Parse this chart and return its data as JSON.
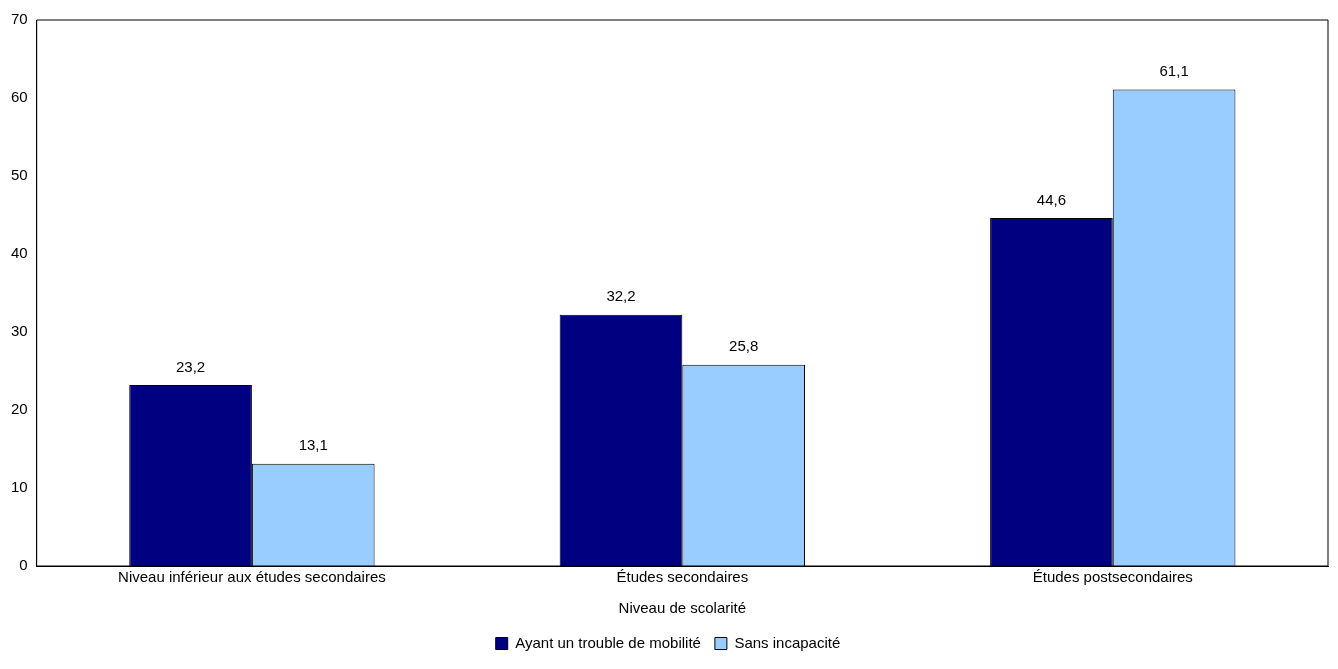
{
  "chart_data": {
    "type": "bar",
    "xlabel": "Niveau de scolarité",
    "categories": [
      "Niveau inférieur aux études secondaires",
      "Études secondaires",
      "Études postsecondaires"
    ],
    "series": [
      {
        "name": "Ayant un trouble de mobilité",
        "color": "#000080",
        "values": [
          23.2,
          32.2,
          44.6
        ],
        "value_labels": [
          "23,2",
          "32,2",
          "44,6"
        ]
      },
      {
        "name": "Sans incapacité",
        "color": "#99ccff",
        "values": [
          13.1,
          25.8,
          61.1
        ],
        "value_labels": [
          "13,1",
          "25,8",
          "61,1"
        ]
      }
    ],
    "ylim": [
      0,
      70
    ],
    "yticks": [
      0,
      10,
      20,
      30,
      40,
      50,
      60,
      70
    ],
    "grid": false,
    "legend": "bottom"
  }
}
